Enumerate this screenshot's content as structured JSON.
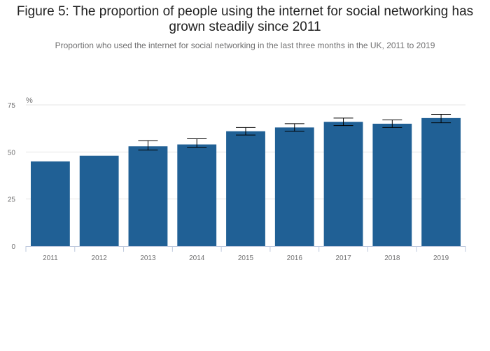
{
  "title": "Figure 5: The proportion of people using the internet for social networking has grown steadily since 2011",
  "subtitle": "Proportion who used the internet for social networking in the last three months in the UK, 2011 to 2019",
  "colors": {
    "bar": "#206095",
    "gridline": "#e6e6e6",
    "axis": "#bec9dd",
    "errorbar": "#000000"
  },
  "chart_data": {
    "type": "bar",
    "unit_label": "%",
    "categories": [
      "2011",
      "2012",
      "2013",
      "2014",
      "2015",
      "2016",
      "2017",
      "2018",
      "2019"
    ],
    "values": [
      45,
      48,
      53,
      54,
      61,
      63,
      66,
      65,
      68
    ],
    "error_bars": [
      null,
      null,
      {
        "low": 51,
        "high": 56
      },
      {
        "low": 52.5,
        "high": 57
      },
      {
        "low": 59,
        "high": 63
      },
      {
        "low": 61,
        "high": 65
      },
      {
        "low": 64,
        "high": 68
      },
      {
        "low": 63,
        "high": 67
      },
      {
        "low": 65.5,
        "high": 70
      }
    ],
    "ylim": [
      0,
      75
    ],
    "yticks": [
      "0",
      "25",
      "50",
      "75"
    ],
    "grid": true,
    "legend": "none"
  }
}
